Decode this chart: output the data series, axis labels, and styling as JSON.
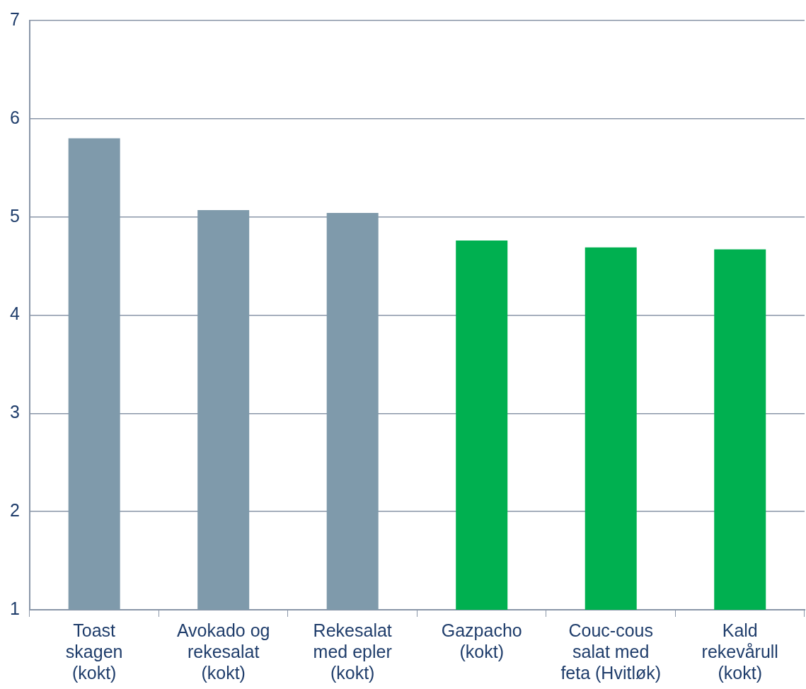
{
  "chart_data": {
    "type": "bar",
    "categories": [
      "Toast\nskagen\n(kokt)",
      "Avokado og\nrekesalat\n(kokt)",
      "Rekesalat\nmed epler\n(kokt)",
      "Gazpacho\n(kokt)",
      "Couc-cous\nsalat med\nfeta (Hvitløk)",
      "Kald\nrekevårull\n(kokt)"
    ],
    "values": [
      5.8,
      5.07,
      5.04,
      4.76,
      4.69,
      4.67
    ],
    "colors": [
      "#7f9aab",
      "#7f9aab",
      "#7f9aab",
      "#00b050",
      "#00b050",
      "#00b050"
    ],
    "ylim": [
      1,
      7
    ],
    "yticks": [
      1,
      2,
      3,
      4,
      5,
      6,
      7
    ],
    "grid": "y",
    "legend": false
  }
}
